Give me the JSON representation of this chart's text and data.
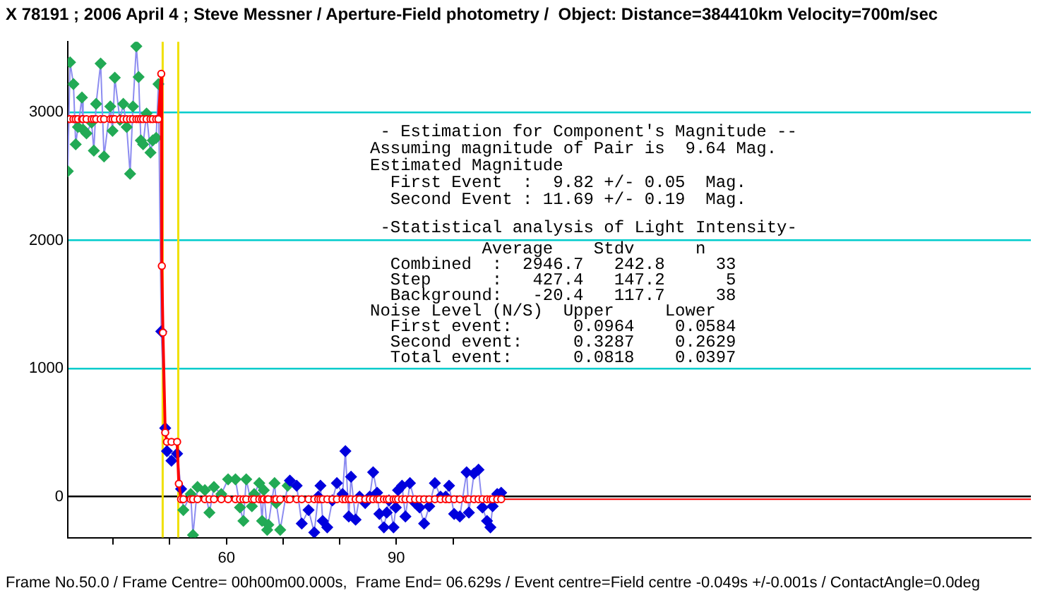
{
  "chart_data": {
    "type": "line",
    "title": "X 78191 ; 2006 April 4 ; Steve Messner / Aperture-Field photometry /  Object: Distance=384410km Velocity=700m/sec",
    "xlim": [
      32,
      202
    ],
    "xticks": [
      {
        "value": 40,
        "label": null
      },
      {
        "value": 50,
        "label": null
      },
      60,
      {
        "value": 70,
        "label": null
      },
      {
        "value": 80,
        "label": null
      },
      90,
      {
        "value": 100,
        "label": null
      }
    ],
    "ylim": [
      -320,
      3550
    ],
    "yticks": [
      0,
      1000,
      2000,
      3000
    ],
    "grid": "y",
    "legend": false,
    "ref_lines": [
      {
        "axis": "x",
        "value": 48.75,
        "color": "#f0e000"
      },
      {
        "axis": "x",
        "value": 51.5,
        "color": "#f0e000"
      }
    ],
    "series": [
      {
        "color": "#ff0000",
        "marker": "circle",
        "x": [
          32,
          32.4,
          33,
          33.4,
          33.8,
          34.5,
          34.7,
          35.3,
          36.2,
          36.6,
          37,
          37.8,
          38.4,
          39.5,
          39.9,
          40.3,
          41.2,
          41.8,
          42.4,
          43,
          43.5,
          44.1,
          44.5,
          44.9,
          45.3,
          45.9,
          46.6,
          47,
          47.6,
          48,
          48.5,
          48.6,
          48.8,
          49.2,
          49.5,
          50.3,
          51.3,
          51.6,
          52,
          52.4,
          53.7,
          54.1,
          54.9,
          56.2,
          57,
          57.8,
          59.1,
          60.3,
          61.6,
          62.4,
          63,
          63.5,
          64.5,
          64.9,
          65.8,
          66.3,
          66.6,
          67.2,
          67.4,
          68.5,
          68.8,
          69.5,
          70.8,
          71.2,
          72.4,
          73.3,
          74.5,
          75.5,
          76.2,
          76.6,
          77,
          77.8,
          78.7,
          79.5,
          80.5,
          81,
          81.6,
          82,
          82.8,
          83.5,
          84.5,
          85.3,
          85.9,
          86.6,
          87,
          87.8,
          88.3,
          88.7,
          89.5,
          89.9,
          90.3,
          91,
          91.6,
          92.4,
          93.3,
          94.1,
          94.9,
          95.8,
          96.8,
          97.8,
          98.7,
          99.3,
          100.2,
          101.2,
          102.4,
          102.8,
          103.7,
          104.5,
          105.2,
          106,
          106.6,
          107,
          107.8,
          108.5
        ],
        "values": [
          2946.7,
          2946.7,
          2946.7,
          2946.7,
          2946.7,
          2946.7,
          2946.7,
          2946.7,
          2946.7,
          2946.7,
          2946.7,
          2946.7,
          2946.7,
          2946.7,
          2946.7,
          2946.7,
          2946.7,
          2946.7,
          2946.7,
          2946.7,
          2946.7,
          2946.7,
          2946.7,
          2946.7,
          2946.7,
          2946.7,
          2946.7,
          2946.7,
          2946.7,
          2946.7,
          3300,
          1800,
          1280,
          500,
          427.4,
          427.4,
          427.4,
          100,
          -20.4,
          -20.4,
          -20.4,
          -20.4,
          -20.4,
          -20.4,
          -20.4,
          -20.4,
          -20.4,
          -20.4,
          -20.4,
          -20.4,
          -20.4,
          -20.4,
          -20.4,
          -20.4,
          -20.4,
          -20.4,
          -20.4,
          -20.4,
          -20.4,
          -20.4,
          -20.4,
          -20.4,
          -20.4,
          -20.4,
          -20.4,
          -20.4,
          -20.4,
          -20.4,
          -20.4,
          -20.4,
          -20.4,
          -20.4,
          -20.4,
          -20.4,
          -20.4,
          -20.4,
          -20.4,
          -20.4,
          -20.4,
          -20.4,
          -20.4,
          -20.4,
          -20.4,
          -20.4,
          -20.4,
          -20.4,
          -20.4,
          -20.4,
          -20.4,
          -20.4,
          -20.4,
          -20.4,
          -20.4,
          -20.4,
          -20.4,
          -20.4,
          -20.4,
          -20.4,
          -20.4,
          -20.4,
          -20.4,
          -20.4,
          -20.4,
          -20.4,
          -20.4,
          -20.4,
          -20.4,
          -20.4,
          -20.4,
          -20.4,
          -20.4,
          -20.4,
          -20.4,
          -20.4
        ]
      },
      {
        "color": "#ff0000",
        "marker": "none",
        "x": [
          108.5,
          202
        ],
        "values": [
          -20.4,
          -20.4
        ]
      },
      {
        "color": "#8c8cf0",
        "marker": "diamond",
        "x": [
          32,
          32.4,
          33,
          33.4,
          33.8,
          34.5,
          34.7,
          35.3,
          36.2,
          36.6,
          37,
          37.8,
          38.4,
          39.5,
          39.9,
          40.3,
          41.2,
          41.8,
          42.4,
          43,
          43.5,
          44.1,
          44.5,
          44.9,
          45.3,
          45.9,
          46.6,
          47,
          47.6,
          48,
          48.5,
          49.2,
          49.5,
          50.3,
          51.3,
          52,
          52.4,
          53.7,
          54.1,
          54.9,
          56.2,
          57,
          57.8,
          59.1,
          60.3,
          61.6,
          62.4,
          63,
          63.5,
          64.5,
          64.9,
          65.8,
          66.3,
          66.6,
          67.2,
          67.4,
          68.5,
          68.8,
          69.5,
          70.8,
          71.2,
          72.4,
          73.3,
          74.5,
          75.5,
          76.2,
          76.6,
          77,
          77.8,
          78.7,
          79.5,
          80.5,
          81,
          81.6,
          82,
          82.8,
          83.5,
          84.5,
          85.3,
          85.9,
          86.6,
          87,
          87.8,
          88.3,
          88.7,
          89.5,
          89.9,
          90.3,
          91,
          91.6,
          92.4,
          93.3,
          94.1,
          94.9,
          95.8,
          96.8,
          97.8,
          98.7,
          99.3,
          100.2,
          101.2,
          102.4,
          102.8,
          103.7,
          104.5,
          105.2,
          106,
          106.6,
          107,
          107.8,
          108.5
        ],
        "values": [
          2540,
          3390,
          3220,
          2750,
          2885,
          3115,
          2865,
          2835,
          2920,
          2700,
          3065,
          3380,
          2655,
          3045,
          2855,
          3270,
          2940,
          3065,
          2885,
          2520,
          3045,
          3515,
          3275,
          2780,
          2750,
          2990,
          2685,
          2780,
          2800,
          3220,
          1290,
          535,
          355,
          280,
          335,
          60,
          -105,
          20,
          -300,
          75,
          50,
          -125,
          75,
          20,
          135,
          135,
          -85,
          -190,
          135,
          -75,
          20,
          105,
          -190,
          50,
          -260,
          -220,
          105,
          -50,
          -260,
          85,
          125,
          85,
          -210,
          -105,
          -280,
          0,
          85,
          -190,
          -240,
          -30,
          105,
          20,
          355,
          -155,
          155,
          -180,
          0,
          -50,
          0,
          190,
          30,
          -135,
          -240,
          -125,
          -30,
          -240,
          -85,
          50,
          85,
          -155,
          105,
          -50,
          -85,
          -210,
          -75,
          105,
          0,
          0,
          85,
          -135,
          -155,
          190,
          -125,
          180,
          210,
          -85,
          -190,
          -240,
          -75,
          20,
          30
        ],
        "colors": [
          "#22aa55",
          "#22aa55",
          "#22aa55",
          "#22aa55",
          "#22aa55",
          "#22aa55",
          "#22aa55",
          "#22aa55",
          "#22aa55",
          "#22aa55",
          "#22aa55",
          "#22aa55",
          "#22aa55",
          "#22aa55",
          "#22aa55",
          "#22aa55",
          "#22aa55",
          "#22aa55",
          "#22aa55",
          "#22aa55",
          "#22aa55",
          "#22aa55",
          "#22aa55",
          "#22aa55",
          "#22aa55",
          "#22aa55",
          "#22aa55",
          "#22aa55",
          "#22aa55",
          "#22aa55",
          "#0000dd",
          "#0000dd",
          "#0000dd",
          "#0000dd",
          "#0000dd",
          "#0000dd",
          "#22aa55",
          "#22aa55",
          "#22aa55",
          "#22aa55",
          "#22aa55",
          "#22aa55",
          "#22aa55",
          "#22aa55",
          "#22aa55",
          "#22aa55",
          "#22aa55",
          "#22aa55",
          "#22aa55",
          "#22aa55",
          "#22aa55",
          "#22aa55",
          "#22aa55",
          "#22aa55",
          "#22aa55",
          "#22aa55",
          "#22aa55",
          "#22aa55",
          "#22aa55",
          "#22aa55",
          "#0000dd",
          "#0000dd",
          "#0000dd",
          "#0000dd",
          "#0000dd",
          "#0000dd",
          "#0000dd",
          "#0000dd",
          "#0000dd",
          "#0000dd",
          "#0000dd",
          "#0000dd",
          "#0000dd",
          "#0000dd",
          "#0000dd",
          "#0000dd",
          "#0000dd",
          "#0000dd",
          "#0000dd",
          "#0000dd",
          "#0000dd",
          "#0000dd",
          "#0000dd",
          "#0000dd",
          "#0000dd",
          "#0000dd",
          "#0000dd",
          "#0000dd",
          "#0000dd",
          "#0000dd",
          "#0000dd",
          "#0000dd",
          "#0000dd",
          "#0000dd",
          "#0000dd",
          "#0000dd",
          "#0000dd",
          "#0000dd",
          "#0000dd",
          "#0000dd",
          "#0000dd",
          "#0000dd",
          "#0000dd",
          "#0000dd",
          "#0000dd",
          "#0000dd",
          "#0000dd",
          "#0000dd",
          "#0000dd",
          "#0000dd",
          "#0000dd"
        ]
      }
    ],
    "annotations": [
      " - Estimation for Component's Magnitude --",
      "Assuming magnitude of Pair is  9.64 Mag.",
      "Estimated Magnitude",
      "  First Event  :  9.82 +/- 0.05  Mag.",
      "  Second Event : 11.69 +/- 0.19  Mag.",
      " -Statistical analysis of Light Intensity-",
      "           Average    Stdv      n",
      "  Combined  :  2946.7   242.8     33",
      "  Step      :   427.4   147.2      5",
      "  Background:   -20.4   117.7     38",
      "Noise Level (N/S)  Upper     Lower",
      "  First event:      0.0964    0.0584",
      "  Second event:     0.3287    0.2629",
      "  Total event:      0.0818    0.0397",
      "Frame No.50.0 / Frame Centre= 00h00m00.000s,  Frame End= 06.629s / Event centre=Field centre -0.049s +/-0.001s / ContactAngle=0.0deg"
    ]
  }
}
